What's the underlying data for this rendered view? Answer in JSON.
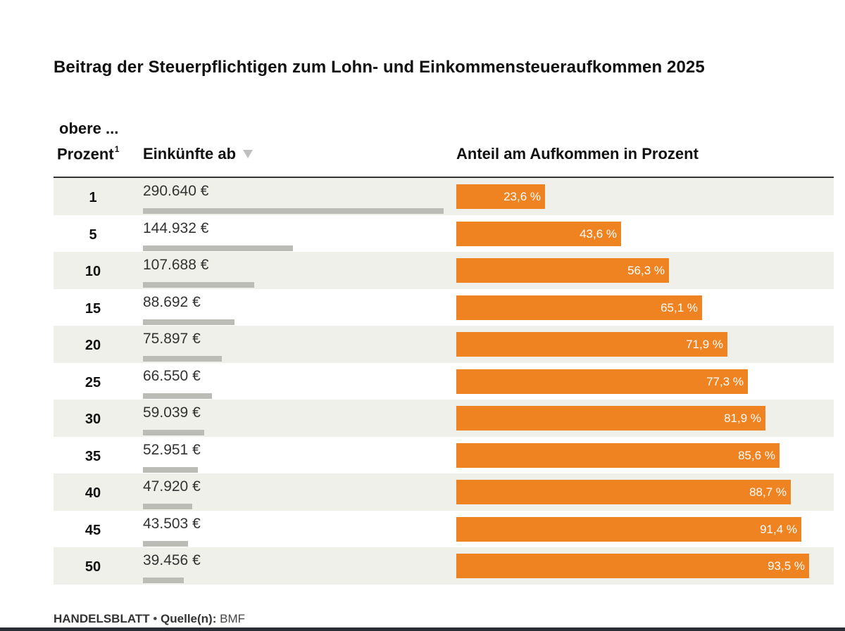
{
  "title": "Beitrag der Steuerpflichtigen zum Lohn- und Einkommensteueraufkommen 2025",
  "header": {
    "obere": "obere ...",
    "prozent": "Prozent",
    "footnote_mark": "1",
    "einkuenfte": "Einkünfte ab",
    "anteil": "Anteil am Aufkommen in Prozent"
  },
  "colors": {
    "share_bar": "#f08321",
    "income_bar": "#bcbcb7",
    "row_alt": "#f0f0eb"
  },
  "chart_data": {
    "type": "table",
    "title": "Beitrag der Steuerpflichtigen zum Lohn- und Einkommensteueraufkommen 2025",
    "columns": [
      "obere ... Prozent",
      "Einkünfte ab",
      "Anteil am Aufkommen in Prozent"
    ],
    "income_max": 290640,
    "share_max": 100,
    "rows": [
      {
        "pct": "1",
        "income": 290640,
        "income_label": "290.640 €",
        "share": 23.6,
        "share_label": "23,6 %"
      },
      {
        "pct": "5",
        "income": 144932,
        "income_label": "144.932 €",
        "share": 43.6,
        "share_label": "43,6 %"
      },
      {
        "pct": "10",
        "income": 107688,
        "income_label": "107.688 €",
        "share": 56.3,
        "share_label": "56,3 %"
      },
      {
        "pct": "15",
        "income": 88692,
        "income_label": "88.692 €",
        "share": 65.1,
        "share_label": "65,1 %"
      },
      {
        "pct": "20",
        "income": 75897,
        "income_label": "75.897 €",
        "share": 71.9,
        "share_label": "71,9 %"
      },
      {
        "pct": "25",
        "income": 66550,
        "income_label": "66.550 €",
        "share": 77.3,
        "share_label": "77,3 %"
      },
      {
        "pct": "30",
        "income": 59039,
        "income_label": "59.039 €",
        "share": 81.9,
        "share_label": "81,9 %"
      },
      {
        "pct": "35",
        "income": 52951,
        "income_label": "52.951 €",
        "share": 85.6,
        "share_label": "85,6 %"
      },
      {
        "pct": "40",
        "income": 47920,
        "income_label": "47.920 €",
        "share": 88.7,
        "share_label": "88,7 %"
      },
      {
        "pct": "45",
        "income": 43503,
        "income_label": "43.503 €",
        "share": 91.4,
        "share_label": "91,4 %"
      },
      {
        "pct": "50",
        "income": 39456,
        "income_label": "39.456 €",
        "share": 93.5,
        "share_label": "93,5 %"
      }
    ]
  },
  "source": {
    "brand": "HANDELSBLATT",
    "separator": "•",
    "label": "Quelle(n):",
    "value": "BMF"
  }
}
